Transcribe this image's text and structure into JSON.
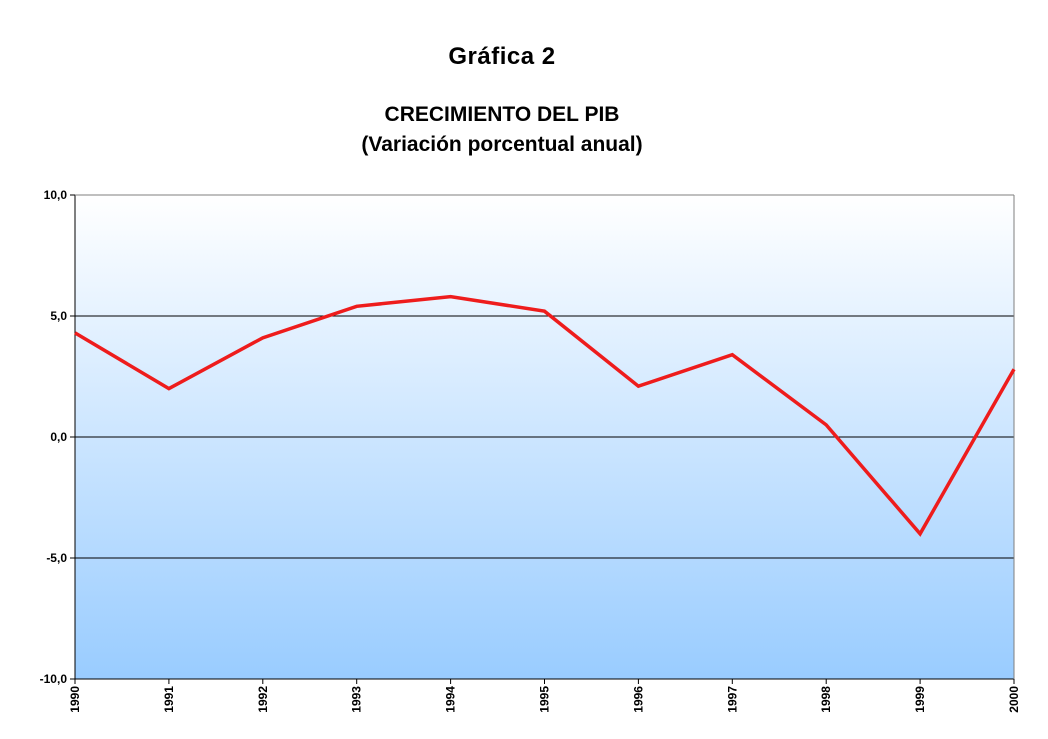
{
  "figure_label": "Gráfica  2",
  "chart_data": {
    "type": "line",
    "title": "CRECIMIENTO DEL PIB",
    "subtitle": "(Variación porcentual anual)",
    "xlabel": "",
    "ylabel": "",
    "categories": [
      "1990",
      "1991",
      "1992",
      "1993",
      "1994",
      "1995",
      "1996",
      "1997",
      "1998",
      "1999",
      "2000"
    ],
    "series": [
      {
        "values": [
          4.3,
          2.0,
          4.1,
          5.4,
          5.8,
          5.2,
          2.1,
          3.4,
          0.5,
          -4.0,
          2.8
        ],
        "color": "#ee1c1c"
      }
    ],
    "ylim": [
      -10,
      10
    ],
    "yticks": [
      -10,
      -5,
      0,
      5,
      10
    ],
    "ytick_labels": [
      "-10,0",
      "-5,0",
      "0,0",
      "5,0",
      "10,0"
    ],
    "grid": true,
    "legend": "none",
    "background_gradient": [
      "#ffffff",
      "#99ccff"
    ]
  }
}
